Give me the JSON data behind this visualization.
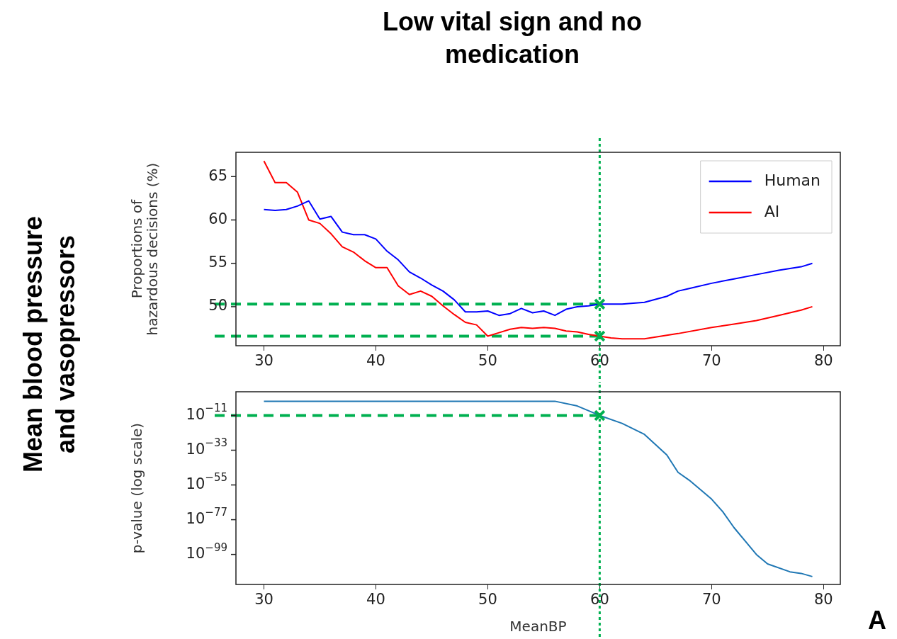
{
  "chart_data": [
    {
      "type": "line",
      "title": "Low vital sign and no medication",
      "ylabel": "Proportions of\nhazardous decisions (%)",
      "annotations": [
        "Mean blood pressure and vasopressors",
        "A"
      ],
      "xlim": [
        27.5,
        81.5
      ],
      "xticks": [
        30,
        40,
        50,
        60,
        70,
        80
      ],
      "ylim": [
        45.5,
        67.8
      ],
      "yticks": [
        50,
        55,
        60,
        65
      ],
      "legend": "top right",
      "series": [
        {
          "name": "Human",
          "color": "#0000ff",
          "x": [
            30,
            31,
            32,
            33,
            34,
            35,
            36,
            37,
            38,
            39,
            40,
            41,
            42,
            43,
            44,
            45,
            46,
            47,
            48,
            49,
            50,
            51,
            52,
            53,
            54,
            55,
            56,
            57,
            58,
            59,
            60,
            62,
            64,
            66,
            67,
            68,
            70,
            72,
            74,
            76,
            78,
            79
          ],
          "values": [
            61.2,
            61.1,
            61.2,
            61.6,
            62.2,
            60.1,
            60.4,
            58.6,
            58.3,
            58.3,
            57.8,
            56.4,
            55.4,
            54.0,
            53.3,
            52.5,
            51.8,
            50.8,
            49.4,
            49.4,
            49.5,
            49.0,
            49.2,
            49.8,
            49.3,
            49.5,
            49.0,
            49.7,
            50.0,
            50.1,
            50.3,
            50.3,
            50.5,
            51.2,
            51.8,
            52.1,
            52.7,
            53.2,
            53.7,
            54.2,
            54.6,
            55.0
          ]
        },
        {
          "name": "AI",
          "color": "#ff0000",
          "x": [
            30,
            31,
            32,
            33,
            34,
            35,
            36,
            37,
            38,
            39,
            40,
            41,
            42,
            43,
            44,
            45,
            46,
            47,
            48,
            49,
            50,
            51,
            52,
            53,
            54,
            55,
            56,
            57,
            58,
            59,
            60,
            61,
            62,
            64,
            65,
            67,
            70,
            72,
            74,
            76,
            78,
            79
          ],
          "values": [
            66.8,
            64.3,
            64.3,
            63.2,
            60.0,
            59.6,
            58.4,
            56.9,
            56.3,
            55.3,
            54.5,
            54.5,
            52.4,
            51.4,
            51.8,
            51.2,
            50.1,
            49.1,
            48.2,
            47.9,
            46.6,
            47.0,
            47.4,
            47.6,
            47.5,
            47.6,
            47.5,
            47.2,
            47.1,
            46.8,
            46.6,
            46.4,
            46.3,
            46.3,
            46.5,
            46.9,
            47.6,
            48.0,
            48.4,
            49.0,
            49.6,
            50.0
          ]
        },
        {
          "type": "scatter",
          "marker": "cross",
          "color": "#00b050",
          "x": [
            60,
            60
          ],
          "values": [
            50.3,
            46.6
          ]
        }
      ],
      "ref_lines": [
        {
          "axis": "y",
          "value": 50.3,
          "color": "#00b050",
          "line_style": "dashed"
        },
        {
          "axis": "y",
          "value": 46.6,
          "color": "#00b050",
          "line_style": "dashed"
        },
        {
          "axis": "x",
          "value": 60,
          "color": "#00b050",
          "line_style": "dotted"
        }
      ]
    },
    {
      "type": "line",
      "xlabel": "MeanBP",
      "ylabel": "p-value (log scale)",
      "log": true,
      "xlim": [
        27.5,
        81.5
      ],
      "xticks": [
        30,
        40,
        50,
        60,
        70,
        80
      ],
      "ylim": [
        1e-118,
        10000.0
      ],
      "yticks": [
        {
          "value": 1e-99,
          "label": "10$^{−99}$"
        },
        {
          "value": 1e-77,
          "label": "10$^{−77}$"
        },
        {
          "value": 1e-55,
          "label": "10$^{−55}$"
        },
        {
          "value": 1e-33,
          "label": "10$^{−33}$"
        },
        {
          "value": 1e-11,
          "label": "10$^{−11}$"
        }
      ],
      "series": [
        {
          "color": "#1f77b4",
          "x": [
            30,
            35,
            40,
            45,
            50,
            52,
            56,
            58,
            60,
            62,
            64,
            66,
            67,
            68,
            70,
            71,
            72,
            74,
            75,
            77,
            78,
            79
          ],
          "values": [
            0.01,
            0.01,
            0.01,
            0.01,
            0.01,
            0.01,
            0.01,
            1e-05,
            1e-11,
            1e-16,
            1e-23,
            1e-36,
            1e-47,
            1e-52,
            1e-64,
            1e-72,
            1e-82,
            1e-99,
            1e-105,
            1e-110,
            1e-111,
            1e-113
          ]
        },
        {
          "type": "scatter",
          "marker": "cross",
          "color": "#00b050",
          "x": [
            60
          ],
          "values": [
            1e-11
          ]
        }
      ],
      "ref_lines": [
        {
          "axis": "y",
          "value": 1e-11,
          "color": "#00b050",
          "line_style": "dashed"
        },
        {
          "axis": "x",
          "value": 60,
          "color": "#00b050",
          "line_style": "dotted"
        }
      ]
    }
  ]
}
